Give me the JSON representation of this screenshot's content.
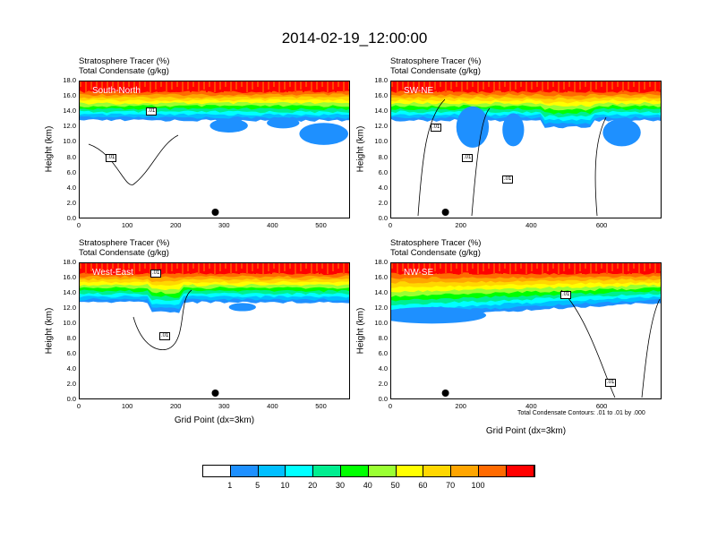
{
  "title": "2014-02-19_12:00:00",
  "header_line1": "Stratosphere Tracer   (%)",
  "header_line2": "Total Condensate   (g/kg)",
  "ylabel": "Height (km)",
  "xlabel": "Grid Point (dx=3km)",
  "contour_note": "Total Condensate Contours: .01 to .01 by .000",
  "yticks": [
    "0.0",
    "2.0",
    "4.0",
    "6.0",
    "8.0",
    "10.0",
    "12.0",
    "14.0",
    "16.0",
    "18.0"
  ],
  "contour_label": ".01",
  "colorbar": {
    "colors": [
      "#ffffff",
      "#1e90ff",
      "#00bfff",
      "#00ffff",
      "#00ee90",
      "#00ff00",
      "#9aff32",
      "#ffff00",
      "#ffd700",
      "#ffa500",
      "#ff6a00",
      "#ff0000"
    ],
    "labels": [
      "1",
      "5",
      "10",
      "20",
      "30",
      "40",
      "50",
      "60",
      "70",
      "100"
    ]
  },
  "panels": [
    {
      "label": "South-North",
      "xticks": [
        "0",
        "100",
        "200",
        "300",
        "400",
        "500"
      ],
      "xmax": 560
    },
    {
      "label": "SW-NE",
      "xticks": [
        "0",
        "200",
        "400",
        "600"
      ],
      "xmax": 770
    },
    {
      "label": "West-East",
      "xticks": [
        "0",
        "100",
        "200",
        "300",
        "400",
        "500"
      ],
      "xmax": 560
    },
    {
      "label": "NW-SE",
      "xticks": [
        "0",
        "200",
        "400",
        "600"
      ],
      "xmax": 770
    }
  ],
  "chart_data": {
    "type": "heatmap",
    "title": "2014-02-19_12:00:00",
    "xlabel": "Grid Point (dx=3km)",
    "ylabel": "Height (km)",
    "ylim": [
      0,
      18
    ],
    "color_levels": [
      1,
      5,
      10,
      20,
      30,
      40,
      50,
      60,
      70,
      100
    ],
    "panels": [
      "South-North",
      "SW-NE",
      "West-East",
      "NW-SE"
    ],
    "contour": {
      "min": 0.01,
      "max": 0.01,
      "interval": 0.0
    }
  }
}
